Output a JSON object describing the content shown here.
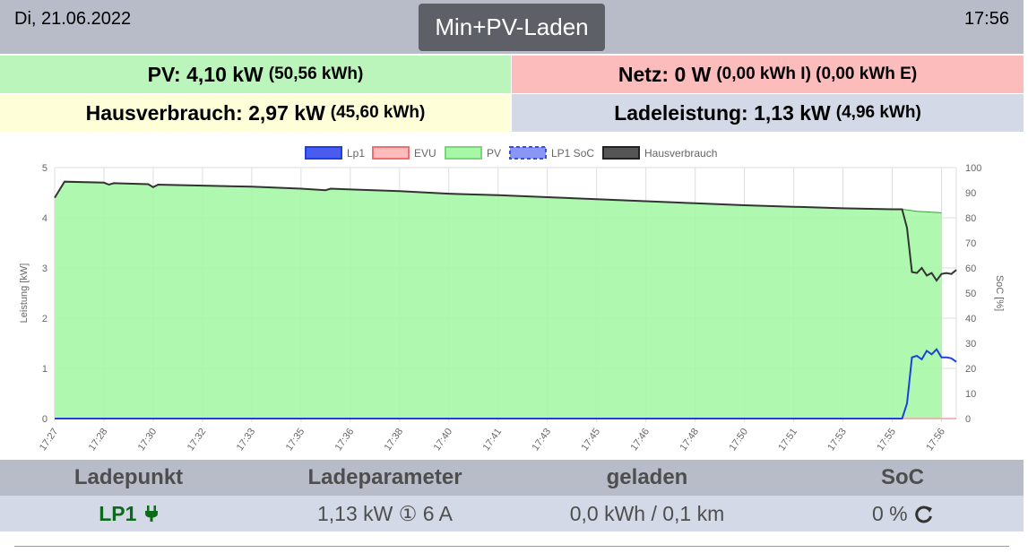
{
  "header": {
    "date": "Di, 21.06.2022",
    "mode_button": "Min+PV-Laden",
    "time": "17:56"
  },
  "tiles": {
    "pv": {
      "label": "PV: 4,10 kW",
      "sub": "(50,56 kWh)",
      "color": "#bcf5bc"
    },
    "netz": {
      "label": "Netz: 0 W",
      "sub": "(0,00 kWh I) (0,00 kWh E)",
      "color": "#fdbcbc"
    },
    "haus": {
      "label": "Hausverbrauch: 2,97 kW",
      "sub": "(45,60 kWh)",
      "color": "#fefed8"
    },
    "lade": {
      "label": "Ladeleistung: 1,13 kW",
      "sub": "(4,96 kWh)",
      "color": "#d3d9e6"
    }
  },
  "chart_data": {
    "type": "area",
    "legend": [
      "Lp1",
      "EVU",
      "PV",
      "LP1 SoC",
      "Hausverbrauch"
    ],
    "legend_position": "top",
    "ylabel": "Leistung [kW]",
    "y2label": "SoC [%]",
    "ylim": [
      0,
      5
    ],
    "y2lim": [
      0,
      100
    ],
    "yticks": [
      "0",
      "1",
      "2",
      "3",
      "4",
      "5"
    ],
    "y2ticks": [
      "0",
      "10",
      "20",
      "30",
      "40",
      "50",
      "60",
      "70",
      "80",
      "90",
      "100"
    ],
    "xticks": [
      "17:27",
      "17:28",
      "17:30",
      "17:32",
      "17:33",
      "17:35",
      "17:36",
      "17:38",
      "17:40",
      "17:41",
      "17:43",
      "17:45",
      "17:46",
      "17:48",
      "17:50",
      "17:51",
      "17:53",
      "17:55",
      "17:56"
    ],
    "grid": true,
    "series": [
      {
        "name": "PV",
        "color": "#a6f7a6",
        "line": "#3a9e3a",
        "points": [
          [
            0,
            4.4
          ],
          [
            0.2,
            4.72
          ],
          [
            1.0,
            4.7
          ],
          [
            1.1,
            4.66
          ],
          [
            1.2,
            4.69
          ],
          [
            1.9,
            4.67
          ],
          [
            2.0,
            4.61
          ],
          [
            2.1,
            4.66
          ],
          [
            4.0,
            4.62
          ],
          [
            5.0,
            4.58
          ],
          [
            5.5,
            4.55
          ],
          [
            5.6,
            4.58
          ],
          [
            7.0,
            4.53
          ],
          [
            8.0,
            4.48
          ],
          [
            9.0,
            4.45
          ],
          [
            10.0,
            4.41
          ],
          [
            11.0,
            4.37
          ],
          [
            12.0,
            4.33
          ],
          [
            13.0,
            4.29
          ],
          [
            14.0,
            4.25
          ],
          [
            15.0,
            4.22
          ],
          [
            16.0,
            4.19
          ],
          [
            17.0,
            4.17
          ],
          [
            17.2,
            4.17
          ],
          [
            17.5,
            4.13
          ],
          [
            18.0,
            4.1
          ]
        ]
      },
      {
        "name": "Hausverbrauch",
        "color": "#333333",
        "points": [
          [
            0,
            4.4
          ],
          [
            0.2,
            4.72
          ],
          [
            1.0,
            4.7
          ],
          [
            1.1,
            4.66
          ],
          [
            1.2,
            4.69
          ],
          [
            1.9,
            4.67
          ],
          [
            2.0,
            4.61
          ],
          [
            2.1,
            4.66
          ],
          [
            4.0,
            4.62
          ],
          [
            5.0,
            4.58
          ],
          [
            5.5,
            4.55
          ],
          [
            5.6,
            4.58
          ],
          [
            7.0,
            4.53
          ],
          [
            8.0,
            4.48
          ],
          [
            9.0,
            4.45
          ],
          [
            10.0,
            4.41
          ],
          [
            11.0,
            4.37
          ],
          [
            12.0,
            4.33
          ],
          [
            13.0,
            4.29
          ],
          [
            14.0,
            4.25
          ],
          [
            15.0,
            4.22
          ],
          [
            16.0,
            4.19
          ],
          [
            17.0,
            4.17
          ],
          [
            17.2,
            4.17
          ],
          [
            17.3,
            3.8
          ],
          [
            17.4,
            2.92
          ],
          [
            17.5,
            2.9
          ],
          [
            17.6,
            3.0
          ],
          [
            17.7,
            2.85
          ],
          [
            17.8,
            2.9
          ],
          [
            17.9,
            2.75
          ],
          [
            18.0,
            2.88
          ],
          [
            18.1,
            2.9
          ],
          [
            18.2,
            2.88
          ],
          [
            18.3,
            2.96
          ]
        ]
      },
      {
        "name": "Lp1",
        "color": "#1f3fe0",
        "points": [
          [
            0,
            0.0
          ],
          [
            17.2,
            0.0
          ],
          [
            17.3,
            0.3
          ],
          [
            17.4,
            1.22
          ],
          [
            17.5,
            1.25
          ],
          [
            17.6,
            1.18
          ],
          [
            17.7,
            1.35
          ],
          [
            17.8,
            1.28
          ],
          [
            17.9,
            1.38
          ],
          [
            18.0,
            1.22
          ],
          [
            18.1,
            1.22
          ],
          [
            18.2,
            1.2
          ],
          [
            18.3,
            1.13
          ]
        ]
      },
      {
        "name": "EVU",
        "color": "#f2a0a0",
        "points": [
          [
            0,
            0.0
          ],
          [
            18.3,
            0.0
          ]
        ]
      }
    ]
  },
  "table": {
    "headers": [
      "Ladepunkt",
      "Ladeparameter",
      "geladen",
      "SoC"
    ],
    "row": {
      "lp": "LP1",
      "param": "1,13 kW ① 6 A",
      "geladen": "0,0 kWh / 0,1 km",
      "soc": "0 %"
    }
  },
  "icons": {
    "plug": "plug-icon",
    "refresh": "refresh-icon"
  }
}
